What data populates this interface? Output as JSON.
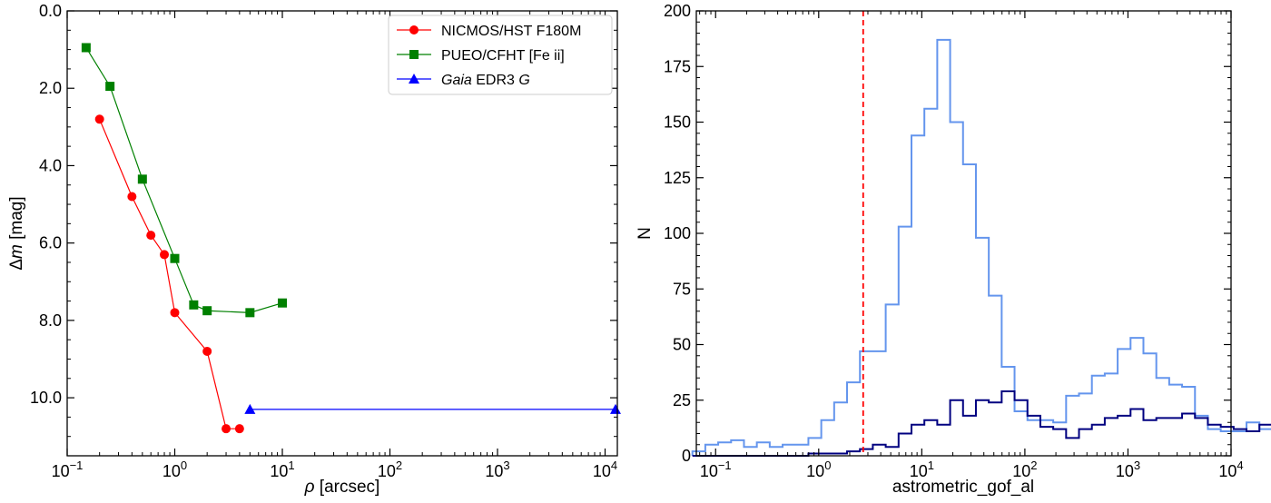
{
  "chart_data": [
    {
      "type": "scatter",
      "x_scale": "log",
      "y_inverted": true,
      "xlim": [
        0.1,
        13000
      ],
      "ylim": [
        11.5,
        0.0
      ],
      "x_ticks": [
        {
          "value": 0.1,
          "base": "10",
          "exp": "−1"
        },
        {
          "value": 1,
          "base": "10",
          "exp": "0"
        },
        {
          "value": 10,
          "base": "10",
          "exp": "1"
        },
        {
          "value": 100,
          "base": "10",
          "exp": "2"
        },
        {
          "value": 1000,
          "base": "10",
          "exp": "3"
        },
        {
          "value": 10000,
          "base": "10",
          "exp": "4"
        }
      ],
      "y_ticks": [
        {
          "value": 0,
          "label": "0.0"
        },
        {
          "value": 2,
          "label": "2.0"
        },
        {
          "value": 4,
          "label": "4.0"
        },
        {
          "value": 6,
          "label": "6.0"
        },
        {
          "value": 8,
          "label": "8.0"
        },
        {
          "value": 10,
          "label": "10.0"
        }
      ],
      "xlabel": {
        "symbol": "ρ",
        "unit": " [arcsec]"
      },
      "ylabel": {
        "prefix": "Δ",
        "symbol": "m",
        "unit": " [mag]"
      },
      "legend_position": "top-right",
      "series": [
        {
          "name": "NICMOS/HST F180M",
          "legend_parts": [
            {
              "text": "NICMOS/HST F180M",
              "italic": false
            }
          ],
          "color": "#ff0000",
          "marker": "circle",
          "x": [
            0.2,
            0.4,
            0.6,
            0.8,
            1.0,
            2.0,
            3.0,
            4.0
          ],
          "y": [
            2.8,
            4.8,
            5.8,
            6.3,
            7.8,
            8.8,
            10.8,
            10.8
          ]
        },
        {
          "name": "PUEO/CFHT [Fe ii]",
          "legend_parts": [
            {
              "text": "PUEO/CFHT [Fe ii]",
              "italic": false
            }
          ],
          "color": "#008000",
          "marker": "square",
          "x": [
            0.15,
            0.25,
            0.5,
            1.0,
            1.5,
            2.0,
            5.0,
            10.0
          ],
          "y": [
            0.95,
            1.95,
            4.35,
            6.4,
            7.6,
            7.75,
            7.8,
            7.55
          ]
        },
        {
          "name": "Gaia EDR3 G",
          "legend_parts": [
            {
              "text": "Gaia",
              "italic": true
            },
            {
              "text": " EDR3 ",
              "italic": false
            },
            {
              "text": "G",
              "italic": true
            }
          ],
          "color": "#0000ff",
          "marker": "triangle",
          "x": [
            5.0,
            12500
          ],
          "y": [
            10.3,
            10.3
          ]
        }
      ]
    },
    {
      "type": "histogram",
      "x_scale": "log",
      "xlim": [
        0.065,
        10000
      ],
      "ylim": [
        0,
        200
      ],
      "xlabel": "astrometric_gof_al",
      "ylabel": "N",
      "x_ticks": [
        {
          "value": 0.1,
          "base": "10",
          "exp": "−1"
        },
        {
          "value": 1,
          "base": "10",
          "exp": "0"
        },
        {
          "value": 10,
          "base": "10",
          "exp": "1"
        },
        {
          "value": 100,
          "base": "10",
          "exp": "2"
        },
        {
          "value": 1000,
          "base": "10",
          "exp": "3"
        },
        {
          "value": 10000,
          "base": "10",
          "exp": "4"
        }
      ],
      "y_ticks": [
        {
          "value": 0,
          "label": "0"
        },
        {
          "value": 25,
          "label": "25"
        },
        {
          "value": 50,
          "label": "50"
        },
        {
          "value": 75,
          "label": "75"
        },
        {
          "value": 100,
          "label": "100"
        },
        {
          "value": 125,
          "label": "125"
        },
        {
          "value": 150,
          "label": "150"
        },
        {
          "value": 175,
          "label": "175"
        },
        {
          "value": 200,
          "label": "200"
        }
      ],
      "threshold_line": {
        "x": 2.7,
        "color": "#ff0000",
        "style": "dashed"
      },
      "bins": {
        "log10_start": -1.225,
        "log10_step": 0.125
      },
      "series": [
        {
          "color": "#6495ed",
          "counts": [
            2,
            5,
            6,
            7,
            4,
            6,
            4,
            5,
            5,
            8,
            16,
            24,
            33,
            47,
            47,
            68,
            103,
            144,
            156,
            187,
            150,
            131,
            98,
            72,
            40,
            20,
            16,
            16,
            15,
            27,
            28,
            36,
            37,
            48,
            53,
            46,
            35,
            32,
            31,
            18,
            12,
            11,
            11,
            15,
            12,
            11,
            8,
            9,
            6,
            6,
            1,
            1
          ]
        },
        {
          "color": "#000080",
          "counts": [
            0,
            0,
            0,
            0,
            0,
            0,
            0,
            0,
            0,
            1,
            1,
            1,
            2,
            3,
            5,
            4,
            10,
            14,
            16,
            14,
            25,
            18,
            25,
            24,
            29,
            25,
            18,
            13,
            12,
            8,
            12,
            14,
            17,
            18,
            21,
            16,
            17,
            17,
            19,
            17,
            14,
            13,
            12,
            11,
            14,
            10,
            10,
            6,
            5,
            3,
            1,
            0
          ]
        }
      ]
    }
  ]
}
